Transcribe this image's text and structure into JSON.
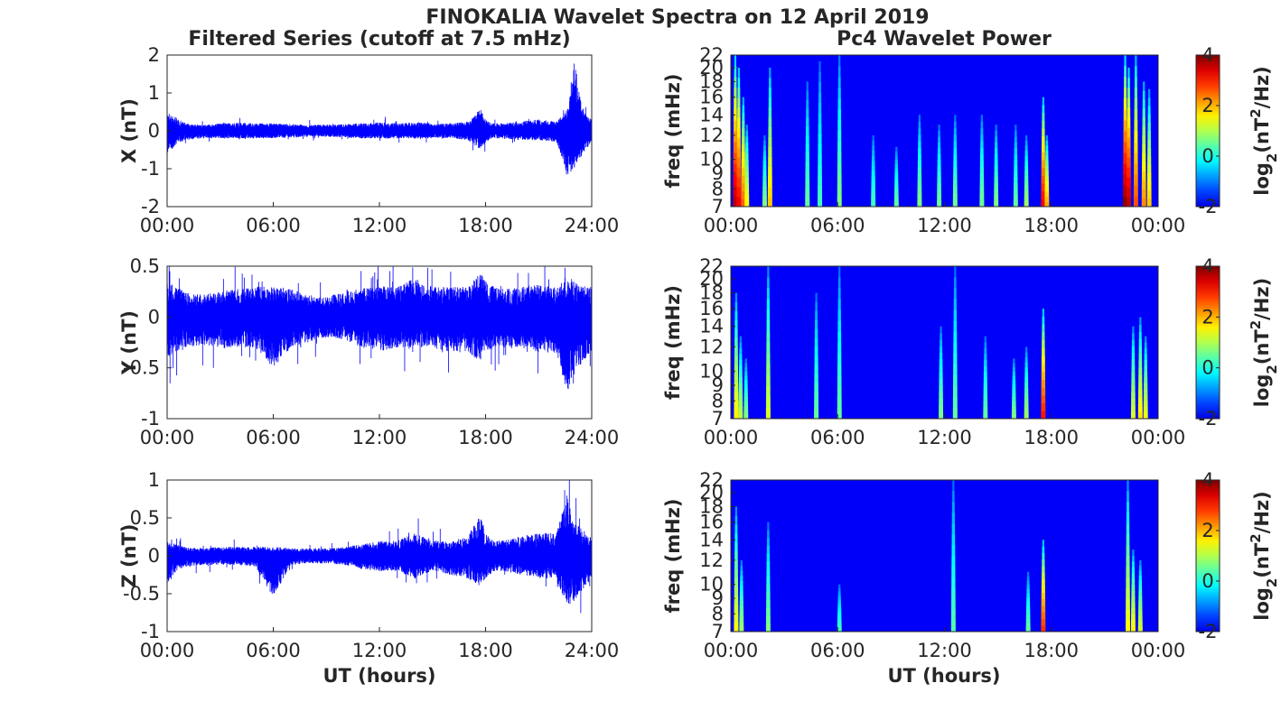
{
  "figure": {
    "title": "FINOKALIA Wavelet Spectra on 12 April 2019",
    "left_column_title": "Filtered Series (cutoff at 7.5 mHz)",
    "right_column_title": "Pc4 Wavelet Power",
    "xlabel": "UT (hours)"
  },
  "chart_data": [
    {
      "type": "line",
      "panel": "x-series",
      "ylabel": "X (nT)",
      "xlim": [
        0,
        24
      ],
      "ylim": [
        -2,
        2
      ],
      "xticks": [
        "00:00",
        "06:00",
        "12:00",
        "18:00",
        "24:00"
      ],
      "yticks": [
        "-2",
        "-1",
        "0",
        "1",
        "2"
      ],
      "color": "#0000ff",
      "envelope": {
        "x": [
          0,
          0.5,
          1,
          2,
          3,
          4,
          5,
          6,
          7,
          8,
          9,
          10,
          11,
          12,
          13,
          14,
          15,
          16,
          17,
          17.7,
          18,
          18.5,
          19,
          20,
          21,
          22,
          22.6,
          23,
          23.5,
          24
        ],
        "upper": [
          0.5,
          0.35,
          0.2,
          0.15,
          0.2,
          0.22,
          0.2,
          0.2,
          0.18,
          0.16,
          0.17,
          0.18,
          0.2,
          0.22,
          0.2,
          0.22,
          0.2,
          0.2,
          0.25,
          0.6,
          0.3,
          0.2,
          0.2,
          0.25,
          0.3,
          0.25,
          0.55,
          1.9,
          0.5,
          0.3
        ],
        "lower": [
          -0.7,
          -0.35,
          -0.25,
          -0.2,
          -0.2,
          -0.2,
          -0.2,
          -0.2,
          -0.18,
          -0.16,
          -0.16,
          -0.18,
          -0.2,
          -0.2,
          -0.2,
          -0.2,
          -0.2,
          -0.2,
          -0.25,
          -0.5,
          -0.3,
          -0.2,
          -0.2,
          -0.25,
          -0.25,
          -0.3,
          -1.2,
          -1.0,
          -0.6,
          -0.3
        ]
      }
    },
    {
      "type": "line",
      "panel": "y-series",
      "ylabel": "Y (nT)",
      "xlim": [
        0,
        24
      ],
      "ylim": [
        -1,
        0.5
      ],
      "xticks": [
        "00:00",
        "06:00",
        "12:00",
        "18:00",
        "24:00"
      ],
      "yticks": [
        "-1",
        "-0.5",
        "0",
        "0.5"
      ],
      "color": "#0000ff",
      "envelope": {
        "x": [
          0,
          0.5,
          1,
          2,
          3,
          4,
          5,
          6,
          7,
          8,
          9,
          10,
          11,
          12,
          13,
          14,
          15,
          16,
          17,
          17.7,
          18,
          18.5,
          19,
          20,
          21,
          22,
          22.6,
          23,
          23.5,
          24
        ],
        "upper": [
          0.35,
          0.3,
          0.25,
          0.22,
          0.25,
          0.28,
          0.3,
          0.3,
          0.28,
          0.22,
          0.2,
          0.25,
          0.28,
          0.3,
          0.3,
          0.38,
          0.3,
          0.3,
          0.3,
          0.45,
          0.35,
          0.3,
          0.28,
          0.3,
          0.32,
          0.3,
          0.42,
          0.35,
          0.3,
          0.3
        ],
        "lower": [
          -0.4,
          -0.35,
          -0.3,
          -0.28,
          -0.3,
          -0.3,
          -0.3,
          -0.5,
          -0.3,
          -0.25,
          -0.2,
          -0.22,
          -0.3,
          -0.35,
          -0.3,
          -0.3,
          -0.3,
          -0.35,
          -0.35,
          -0.45,
          -0.35,
          -0.3,
          -0.3,
          -0.3,
          -0.35,
          -0.35,
          -0.75,
          -0.55,
          -0.45,
          -0.35
        ]
      }
    },
    {
      "type": "line",
      "panel": "z-series",
      "ylabel": "Z (nT)",
      "xlim": [
        0,
        24
      ],
      "ylim": [
        -1,
        1
      ],
      "xticks": [
        "00:00",
        "06:00",
        "12:00",
        "18:00",
        "24:00"
      ],
      "yticks": [
        "-1",
        "-0.5",
        "0",
        "0.5",
        "1"
      ],
      "color": "#0000ff",
      "envelope": {
        "x": [
          0,
          0.5,
          1,
          2,
          3,
          4,
          5,
          6,
          7,
          8,
          9,
          10,
          11,
          12,
          13,
          14,
          15,
          16,
          17,
          17.7,
          18,
          18.5,
          19,
          20,
          21,
          22,
          22.6,
          23,
          23.5,
          24
        ],
        "upper": [
          0.2,
          0.15,
          0.12,
          0.1,
          0.12,
          0.12,
          0.12,
          0.12,
          0.1,
          0.1,
          0.1,
          0.12,
          0.15,
          0.2,
          0.2,
          0.3,
          0.2,
          0.2,
          0.25,
          0.55,
          0.3,
          0.2,
          0.2,
          0.25,
          0.3,
          0.3,
          0.8,
          0.45,
          0.35,
          0.25
        ],
        "lower": [
          -0.4,
          -0.2,
          -0.15,
          -0.12,
          -0.12,
          -0.12,
          -0.15,
          -0.55,
          -0.12,
          -0.1,
          -0.1,
          -0.12,
          -0.18,
          -0.2,
          -0.2,
          -0.3,
          -0.2,
          -0.25,
          -0.3,
          -0.4,
          -0.3,
          -0.2,
          -0.2,
          -0.25,
          -0.3,
          -0.3,
          -0.7,
          -0.6,
          -0.45,
          -0.3
        ]
      }
    },
    {
      "type": "heatmap",
      "panel": "x-spectrum",
      "ylabel": "freq (mHz)",
      "xlim": [
        0,
        24
      ],
      "ylim": [
        7,
        22
      ],
      "xticks": [
        "00:00",
        "06:00",
        "12:00",
        "18:00",
        "00:00"
      ],
      "yticks": [
        "7",
        "8",
        "9",
        "10",
        "12",
        "14",
        "16",
        "18",
        "20",
        "22"
      ],
      "colorbar": {
        "label": "log2(nT^2/Hz)",
        "range": [
          -2,
          4
        ],
        "ticks": [
          "-2",
          "0",
          "2",
          "4"
        ],
        "colormap": "jet"
      },
      "bursts": [
        {
          "t": 0.25,
          "f_top": 22,
          "peak": 3.6
        },
        {
          "t": 0.45,
          "f_top": 20,
          "peak": 3.2
        },
        {
          "t": 0.7,
          "f_top": 16,
          "peak": 2.5
        },
        {
          "t": 0.9,
          "f_top": 13,
          "peak": 1.5
        },
        {
          "t": 2.2,
          "f_top": 20,
          "peak": 1.8
        },
        {
          "t": 1.9,
          "f_top": 12,
          "peak": 0.6
        },
        {
          "t": 4.3,
          "f_top": 18,
          "peak": 0.4
        },
        {
          "t": 5.0,
          "f_top": 21,
          "peak": 0.2
        },
        {
          "t": 6.1,
          "f_top": 22,
          "peak": 0.6
        },
        {
          "t": 8.0,
          "f_top": 12,
          "peak": 0.2
        },
        {
          "t": 9.3,
          "f_top": 11,
          "peak": 0.4
        },
        {
          "t": 10.6,
          "f_top": 14,
          "peak": 0.6
        },
        {
          "t": 11.7,
          "f_top": 13,
          "peak": 0.5
        },
        {
          "t": 12.6,
          "f_top": 14,
          "peak": 0.5
        },
        {
          "t": 14.1,
          "f_top": 14,
          "peak": 0.5
        },
        {
          "t": 14.9,
          "f_top": 13,
          "peak": 0.6
        },
        {
          "t": 16.0,
          "f_top": 13,
          "peak": 0.4
        },
        {
          "t": 16.6,
          "f_top": 12,
          "peak": 0.8
        },
        {
          "t": 17.55,
          "f_top": 16,
          "peak": 3.2
        },
        {
          "t": 17.75,
          "f_top": 12,
          "peak": 2.0
        },
        {
          "t": 22.15,
          "f_top": 22,
          "peak": 3.9
        },
        {
          "t": 22.35,
          "f_top": 20,
          "peak": 3.6
        },
        {
          "t": 22.75,
          "f_top": 22,
          "peak": 2.6
        },
        {
          "t": 23.2,
          "f_top": 18,
          "peak": 2.2
        },
        {
          "t": 23.5,
          "f_top": 17,
          "peak": 1.8
        }
      ]
    },
    {
      "type": "heatmap",
      "panel": "y-spectrum",
      "ylabel": "freq (mHz)",
      "xlim": [
        0,
        24
      ],
      "ylim": [
        7,
        22
      ],
      "xticks": [
        "00:00",
        "06:00",
        "12:00",
        "18:00",
        "00:00"
      ],
      "yticks": [
        "7",
        "8",
        "9",
        "10",
        "12",
        "14",
        "16",
        "18",
        "20",
        "22"
      ],
      "colorbar": {
        "label": "log2(nT^2/Hz)",
        "range": [
          -2,
          4
        ],
        "ticks": [
          "-2",
          "0",
          "2",
          "4"
        ],
        "colormap": "jet"
      },
      "bursts": [
        {
          "t": 0.3,
          "f_top": 18,
          "peak": 1.5
        },
        {
          "t": 0.55,
          "f_top": 13,
          "peak": 1.0
        },
        {
          "t": 0.85,
          "f_top": 11,
          "peak": 0.6
        },
        {
          "t": 2.1,
          "f_top": 22,
          "peak": 1.2
        },
        {
          "t": 4.8,
          "f_top": 18,
          "peak": 0.4
        },
        {
          "t": 6.1,
          "f_top": 22,
          "peak": 0.4
        },
        {
          "t": 11.8,
          "f_top": 14,
          "peak": 0.6
        },
        {
          "t": 12.6,
          "f_top": 22,
          "peak": 0.4
        },
        {
          "t": 14.3,
          "f_top": 13,
          "peak": 0.4
        },
        {
          "t": 15.9,
          "f_top": 11,
          "peak": 0.6
        },
        {
          "t": 16.6,
          "f_top": 12,
          "peak": 0.8
        },
        {
          "t": 17.55,
          "f_top": 16,
          "peak": 3.0
        },
        {
          "t": 22.6,
          "f_top": 14,
          "peak": 1.2
        },
        {
          "t": 23.0,
          "f_top": 15,
          "peak": 1.6
        },
        {
          "t": 23.3,
          "f_top": 13,
          "peak": 1.3
        }
      ]
    },
    {
      "type": "heatmap",
      "panel": "z-spectrum",
      "ylabel": "freq (mHz)",
      "xlim": [
        0,
        24
      ],
      "ylim": [
        7,
        22
      ],
      "xticks": [
        "00:00",
        "06:00",
        "12:00",
        "18:00",
        "00:00"
      ],
      "yticks": [
        "7",
        "8",
        "9",
        "10",
        "12",
        "14",
        "16",
        "18",
        "20",
        "22"
      ],
      "colorbar": {
        "label": "log2(nT^2/Hz)",
        "range": [
          -2,
          4
        ],
        "ticks": [
          "-2",
          "0",
          "2",
          "4"
        ],
        "colormap": "jet"
      },
      "bursts": [
        {
          "t": 0.3,
          "f_top": 18,
          "peak": 1.4
        },
        {
          "t": 0.6,
          "f_top": 12,
          "peak": 0.8
        },
        {
          "t": 2.1,
          "f_top": 16,
          "peak": 0.6
        },
        {
          "t": 6.1,
          "f_top": 10,
          "peak": 0.2
        },
        {
          "t": 12.5,
          "f_top": 22,
          "peak": 0.3
        },
        {
          "t": 16.7,
          "f_top": 11,
          "peak": 0.4
        },
        {
          "t": 17.55,
          "f_top": 14,
          "peak": 2.8
        },
        {
          "t": 22.3,
          "f_top": 22,
          "peak": 1.4
        },
        {
          "t": 22.6,
          "f_top": 13,
          "peak": 1.5
        },
        {
          "t": 23.0,
          "f_top": 12,
          "peak": 1.2
        }
      ]
    }
  ]
}
